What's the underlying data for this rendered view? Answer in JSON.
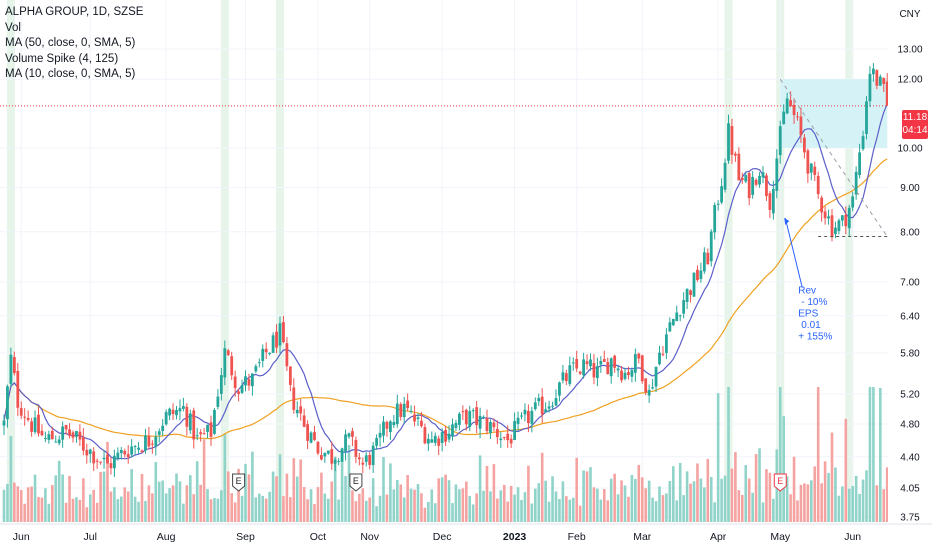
{
  "legend": {
    "symbol": "ALPHA GROUP, 1D, SZSE",
    "vol": "Vol",
    "ma50": "MA (50, close, 0, SMA, 5)",
    "volume_spike": "Volume Spike (4, 125)",
    "ma10": "MA (10, close, 0, SMA, 5)"
  },
  "currency": "CNY",
  "price_tag": {
    "price": "11.18",
    "countdown": "04:14"
  },
  "annotation": [
    "Rev",
    "- 10%",
    "EPS",
    "0.01",
    "+ 155%"
  ],
  "earnings_marker": "E",
  "colors": {
    "up": "#26a69a",
    "down": "#ef5350",
    "ma10": "#5c5fc9",
    "ma50": "#f0a020",
    "spike_band": "#e6f4ea",
    "box": "#d5f3f7",
    "annotation": "#2962ff",
    "price_line": "#f23645"
  },
  "chart_data": {
    "type": "candlestick",
    "y_scale": "log",
    "ylim": [
      3.7,
      14.5
    ],
    "y_ticks": [
      "3.75",
      "4.05",
      "4.40",
      "4.80",
      "5.20",
      "5.80",
      "6.40",
      "7.00",
      "8.00",
      "9.00",
      "10.00",
      "11.18",
      "12.00",
      "13.00"
    ],
    "x_ticks": [
      {
        "label": "Jun",
        "day": 5
      },
      {
        "label": "Jul",
        "day": 25
      },
      {
        "label": "Aug",
        "day": 47
      },
      {
        "label": "Sep",
        "day": 70
      },
      {
        "label": "Oct",
        "day": 91
      },
      {
        "label": "Nov",
        "day": 106
      },
      {
        "label": "Dec",
        "day": 127
      },
      {
        "label": "2023",
        "day": 148,
        "bold": true
      },
      {
        "label": "Feb",
        "day": 166
      },
      {
        "label": "Mar",
        "day": 185
      },
      {
        "label": "Apr",
        "day": 207
      },
      {
        "label": "May",
        "day": 225
      },
      {
        "label": "Jun",
        "day": 246
      }
    ],
    "path_knots": [
      [
        0,
        4.8
      ],
      [
        2,
        5.7
      ],
      [
        4,
        5.1
      ],
      [
        8,
        4.8
      ],
      [
        12,
        4.6
      ],
      [
        18,
        4.7
      ],
      [
        24,
        4.5
      ],
      [
        30,
        4.3
      ],
      [
        36,
        4.5
      ],
      [
        42,
        4.6
      ],
      [
        47,
        4.9
      ],
      [
        52,
        5.0
      ],
      [
        56,
        4.6
      ],
      [
        60,
        4.7
      ],
      [
        64,
        5.8
      ],
      [
        68,
        5.3
      ],
      [
        72,
        5.4
      ],
      [
        76,
        5.8
      ],
      [
        80,
        6.1
      ],
      [
        83,
        5.2
      ],
      [
        87,
        4.8
      ],
      [
        91,
        4.5
      ],
      [
        95,
        4.4
      ],
      [
        100,
        4.6
      ],
      [
        104,
        4.3
      ],
      [
        108,
        4.5
      ],
      [
        112,
        4.9
      ],
      [
        116,
        5.0
      ],
      [
        120,
        4.8
      ],
      [
        124,
        4.6
      ],
      [
        128,
        4.7
      ],
      [
        134,
        4.9
      ],
      [
        140,
        4.8
      ],
      [
        146,
        4.6
      ],
      [
        152,
        4.9
      ],
      [
        158,
        5.1
      ],
      [
        164,
        5.5
      ],
      [
        168,
        5.6
      ],
      [
        172,
        5.5
      ],
      [
        176,
        5.7
      ],
      [
        180,
        5.5
      ],
      [
        184,
        5.7
      ],
      [
        187,
        5.2
      ],
      [
        190,
        5.8
      ],
      [
        196,
        6.6
      ],
      [
        200,
        7.0
      ],
      [
        204,
        7.5
      ],
      [
        208,
        9.2
      ],
      [
        210,
        10.4
      ],
      [
        213,
        9.2
      ],
      [
        216,
        9.0
      ],
      [
        219,
        9.5
      ],
      [
        222,
        8.7
      ],
      [
        225,
        10.3
      ],
      [
        227,
        11.4
      ],
      [
        230,
        10.6
      ],
      [
        233,
        9.6
      ],
      [
        236,
        8.8
      ],
      [
        240,
        8.1
      ],
      [
        243,
        8.2
      ],
      [
        246,
        8.7
      ],
      [
        249,
        10.5
      ],
      [
        251,
        12.3
      ],
      [
        254,
        11.8
      ],
      [
        256,
        11.3
      ]
    ],
    "spike_days": [
      2,
      64,
      80,
      210,
      225,
      245
    ],
    "volume_ylim": [
      0,
      110
    ],
    "volume_pattern": [
      38,
      30,
      55,
      30,
      25,
      28,
      20,
      22,
      30,
      35,
      18,
      25,
      40,
      22
    ],
    "volume_peaks": [
      {
        "day": 2,
        "value": 70
      },
      {
        "day": 64,
        "value": 72
      },
      {
        "day": 80,
        "value": 55
      },
      {
        "day": 207,
        "value": 75
      },
      {
        "day": 210,
        "value": 90
      },
      {
        "day": 225,
        "value": 95
      },
      {
        "day": 236,
        "value": 85
      },
      {
        "day": 244,
        "value": 60
      },
      {
        "day": 251,
        "value": 100
      },
      {
        "day": 252,
        "value": 82
      },
      {
        "day": 254,
        "value": 78
      }
    ],
    "earnings_days": [
      68,
      102,
      225
    ],
    "ma10_period": 10,
    "ma50_period": 50,
    "price_line": 11.18,
    "box": {
      "day_start": 225,
      "day_end": 256,
      "y_top": 12.0,
      "y_bottom": 10.0
    },
    "triangle": {
      "apex_day": 225,
      "apex_y": 12.0,
      "base_day": 256,
      "base_y": 7.9,
      "base_start_day": 236
    },
    "annotation_anchor": {
      "day": 225,
      "y": 8.3
    }
  }
}
